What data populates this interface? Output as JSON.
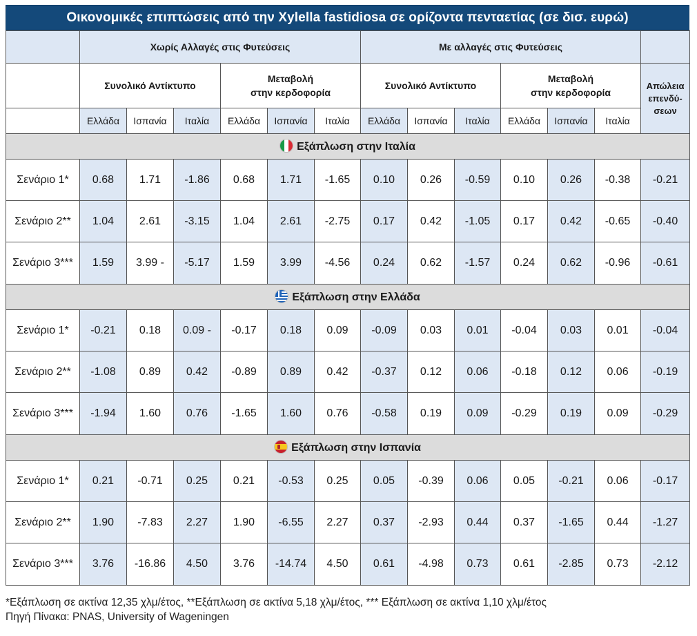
{
  "title": "Οικονομικές επιπτώσεις από την Xylella fastidiosa σε ορίζοντα πενταετίας (σε δισ. ευρώ)",
  "headers": {
    "group_without": "Χωρίς Αλλαγές στις Φυτεύσεις",
    "group_with": "Με αλλαγές στις Φυτεύσεις",
    "total_impact": "Συνολικό Αντίκτυπο",
    "profit_change_line1": "Μεταβολή",
    "profit_change_line2": "στην κερδοφορία",
    "loss_line1": "Απώλεια",
    "loss_line2": "επενδύ-",
    "loss_line3": "σεων",
    "countries": [
      "Ελλάδα",
      "Ισπανία",
      "Ιταλία",
      "Ελλάδα",
      "Ισπανία",
      "Ιταλία",
      "Ελλάδα",
      "Ισπανία",
      "Ιταλία",
      "Ελλάδα",
      "Ισπανία",
      "Ιταλία"
    ]
  },
  "sections": [
    {
      "title": "Εξάπλωση στην Ιταλία",
      "flag_icon": "italy-flag-icon",
      "rows": [
        {
          "scenario": "Σενάριο 1*",
          "values": [
            "0.68",
            "1.71",
            "-1.86",
            "0.68",
            "1.71",
            "-1.65",
            "0.10",
            "0.26",
            "-0.59",
            "0.10",
            "0.26",
            "-0.38",
            "-0.21"
          ]
        },
        {
          "scenario": "Σενάριο 2**",
          "values": [
            "1.04",
            "2.61",
            "-3.15",
            "1.04",
            "2.61",
            "-2.75",
            "0.17",
            "0.42",
            "-1.05",
            "0.17",
            "0.42",
            "-0.65",
            "-0.40"
          ]
        },
        {
          "scenario": "Σενάριο 3***",
          "values": [
            "1.59",
            "3.99 -",
            "-5.17",
            "1.59",
            "3.99",
            "-4.56",
            "0.24",
            "0.62",
            "-1.57",
            "0.24",
            "0.62",
            "-0.96",
            "-0.61"
          ]
        }
      ]
    },
    {
      "title": "Εξάπλωση στην Ελλάδα",
      "flag_icon": "greece-flag-icon",
      "rows": [
        {
          "scenario": "Σενάριο 1*",
          "values": [
            "-0.21",
            "0.18",
            "0.09 -",
            "-0.17",
            "0.18",
            "0.09",
            "-0.09",
            "0.03",
            "0.01",
            "-0.04",
            "0.03",
            "0.01",
            "-0.04"
          ]
        },
        {
          "scenario": "Σενάριο 2**",
          "values": [
            "-1.08",
            "0.89",
            "0.42",
            "-0.89",
            "0.89",
            "0.42",
            "-0.37",
            "0.12",
            "0.06",
            "-0.18",
            "0.12",
            "0.06",
            "-0.19"
          ]
        },
        {
          "scenario": "Σενάριο 3***",
          "values": [
            "-1.94",
            "1.60",
            "0.76",
            "-1.65",
            "1.60",
            "0.76",
            "-0.58",
            "0.19",
            "0.09",
            "-0.29",
            "0.19",
            "0.09",
            "-0.29"
          ]
        }
      ]
    },
    {
      "title": "Εξάπλωση στην Ισπανία",
      "flag_icon": "spain-flag-icon",
      "rows": [
        {
          "scenario": "Σενάριο 1*",
          "values": [
            "0.21",
            "-0.71",
            "0.25",
            "0.21",
            "-0.53",
            "0.25",
            "0.05",
            "-0.39",
            "0.06",
            "0.05",
            "-0.21",
            "0.06",
            "-0.17"
          ]
        },
        {
          "scenario": "Σενάριο 2**",
          "values": [
            "1.90",
            "-7.83",
            "2.27",
            "1.90",
            "-6.55",
            "2.27",
            "0.37",
            "-2.93",
            "0.44",
            "0.37",
            "-1.65",
            "0.44",
            "-1.27"
          ]
        },
        {
          "scenario": "Σενάριο 3***",
          "values": [
            "3.76",
            "-16.86",
            "4.50",
            "3.76",
            "-14.74",
            "4.50",
            "0.61",
            "-4.98",
            "0.73",
            "0.61",
            "-2.85",
            "0.73",
            "-2.12"
          ]
        }
      ]
    }
  ],
  "footnote": "*Εξάπλωση σε ακτίνα 12,35 χλμ/έτος, **Εξάπλωση σε ακτίνα 5,18 χλμ/έτος, *** Εξάπλωση σε ακτίνα 1,10 χλμ/έτος",
  "source": "Πηγή Πίνακα: PNAS, University of Wageningen",
  "colors": {
    "title_bg": "#14497a",
    "cell_blue": "#dde7f4",
    "section_bg": "#dcdcdc"
  }
}
